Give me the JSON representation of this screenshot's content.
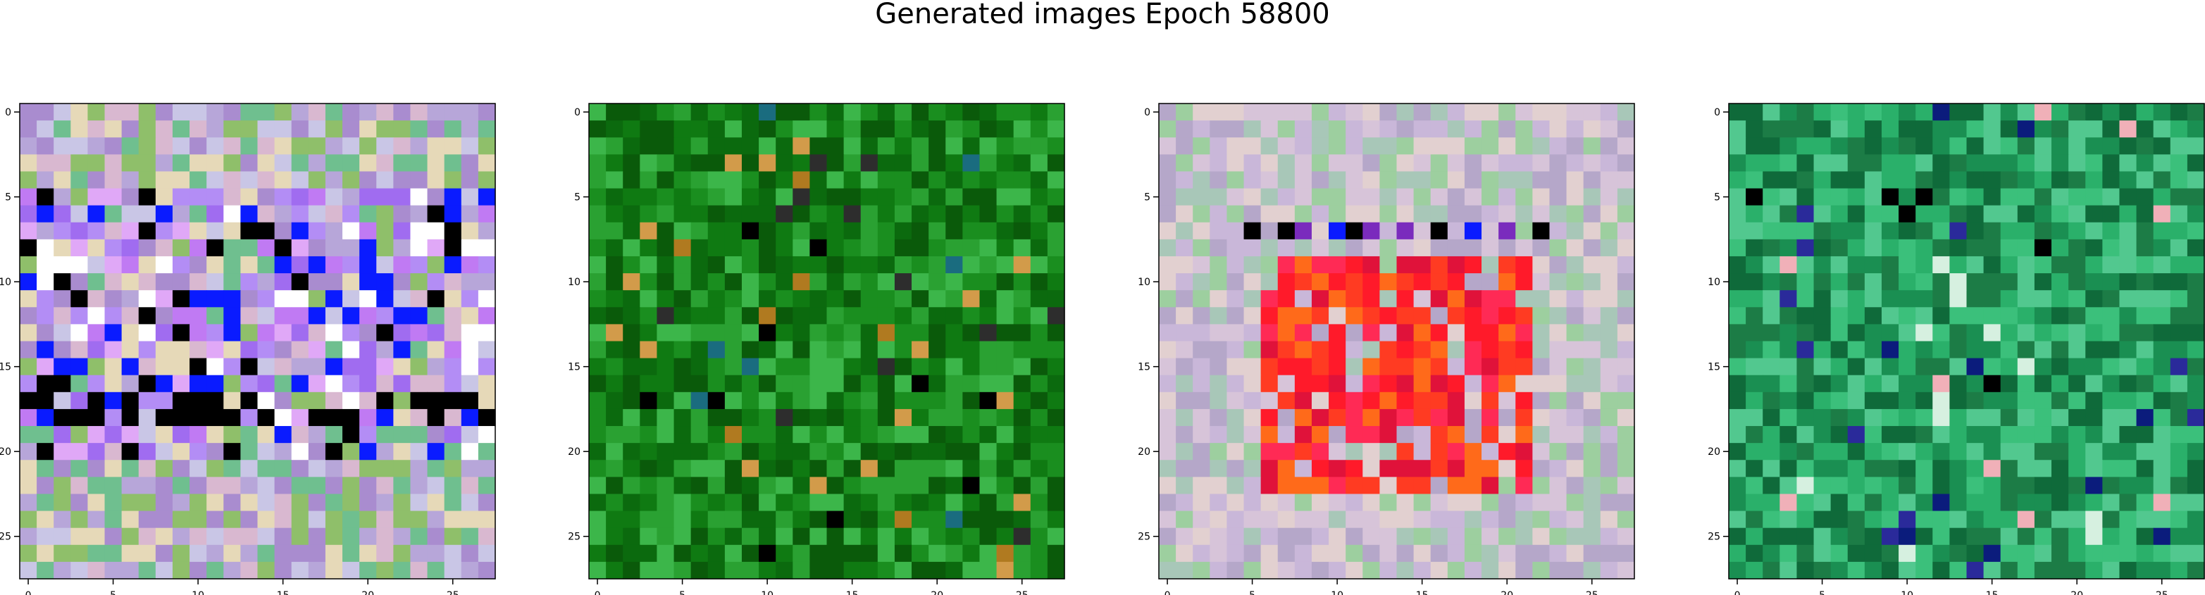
{
  "title": "Generated images Epoch 58800",
  "chart_data": [
    {
      "type": "heatmap",
      "grid_size": 28,
      "palette_hint": "mixed pastel purple and green noise; bright purple band around rows 5-20",
      "base_colors": [
        "#8fbf6a",
        "#b7a6d9",
        "#d9b8d0",
        "#6fbf8f",
        "#c9c6e6",
        "#a98ccf",
        "#e6d9b8"
      ],
      "feature_colors": [
        "#a06cf0",
        "#c07af3",
        "#b38df5",
        "#e0a8f7",
        "#ffffff",
        "#0a1bff",
        "#000000"
      ],
      "xticks": [
        0,
        5,
        10,
        15,
        20,
        25
      ],
      "yticks": [
        0,
        5,
        10,
        15,
        20,
        25
      ]
    },
    {
      "type": "heatmap",
      "grid_size": 28,
      "palette_hint": "mostly green texture with dark green and a few brown/teal pixels",
      "base_colors": [
        "#0f7a12",
        "#1a8e1f",
        "#0b6a0e",
        "#2aa132",
        "#0a5a0a",
        "#3cb64a"
      ],
      "feature_colors": [
        "#000000",
        "#1a6c7f",
        "#b07a20",
        "#d29b4a",
        "#2d2d2d"
      ],
      "xticks": [
        0,
        5,
        10,
        15,
        20,
        25
      ],
      "yticks": [
        0,
        5,
        10,
        15,
        20,
        25
      ]
    },
    {
      "type": "heatmap",
      "grid_size": 28,
      "palette_hint": "pastel noise with a strong red/orange block in the center",
      "base_colors": [
        "#c9b7d9",
        "#d7c4d9",
        "#a8c7b8",
        "#e2d0d0",
        "#b5a7c9",
        "#9dcf9f"
      ],
      "feature_colors": [
        "#ff1a2a",
        "#ff3b22",
        "#ff6a1a",
        "#e0123a",
        "#ff2a55",
        "#000000",
        "#0a1bff",
        "#7a2bbd"
      ],
      "xticks": [
        0,
        5,
        10,
        15,
        20,
        25
      ],
      "yticks": [
        0,
        5,
        10,
        15,
        20,
        25
      ]
    },
    {
      "type": "heatmap",
      "grid_size": 28,
      "palette_hint": "green/teal noise with a few dark and blue pixels",
      "base_colors": [
        "#1a8f52",
        "#2ab06a",
        "#3bc07b",
        "#0f6a3a",
        "#52c88f",
        "#1c7c46"
      ],
      "feature_colors": [
        "#000000",
        "#0b1c7c",
        "#2a2a9a",
        "#f0b0b8",
        "#d6f0e0"
      ],
      "xticks": [
        0,
        5,
        10,
        15,
        20,
        25
      ],
      "yticks": [
        0,
        5,
        10,
        15,
        20,
        25
      ]
    }
  ]
}
